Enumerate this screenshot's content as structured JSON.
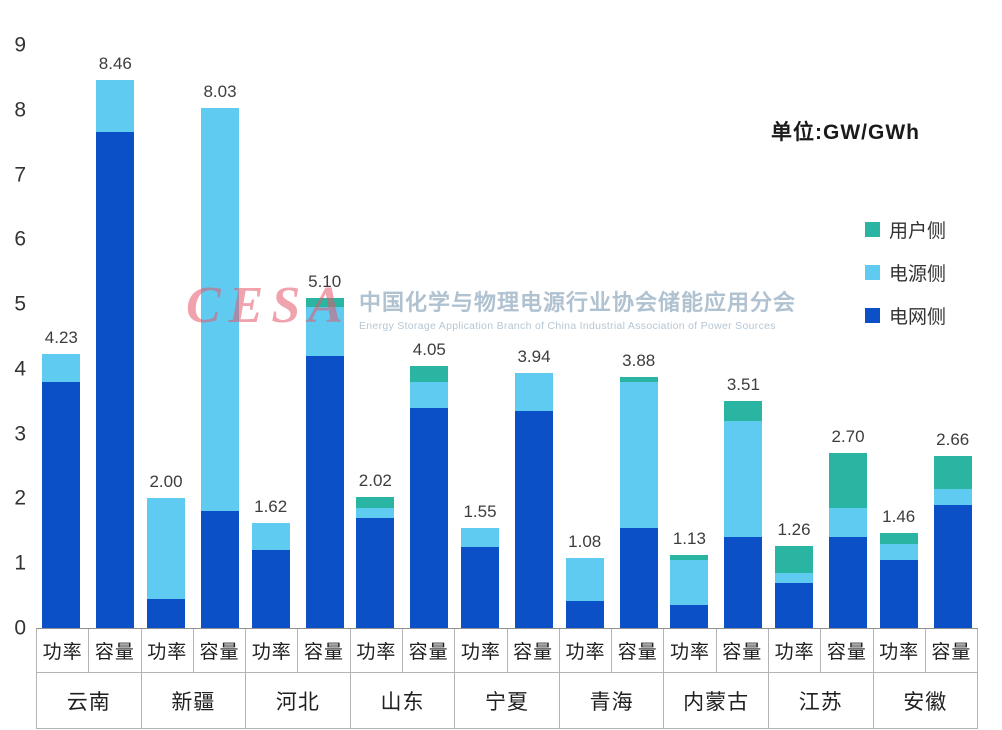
{
  "unit_label": "单位:GW/GWh",
  "watermark": {
    "logo": "CESA",
    "cn": "中国化学与物理电源行业协会储能应用分会",
    "en": "Energy Storage Application Branch of China Industrial Association of Power Sources"
  },
  "legend": [
    {
      "label": "用户侧",
      "color": "#2ab5a3"
    },
    {
      "label": "电源侧",
      "color": "#5fcbf1"
    },
    {
      "label": "电网侧",
      "color": "#0b50c6"
    }
  ],
  "chart_data": {
    "type": "bar",
    "stacked": true,
    "title": "",
    "ylabel": "",
    "xlabel": "",
    "ylim": [
      0,
      9
    ],
    "y_ticks": [
      0,
      1,
      2,
      3,
      4,
      5,
      6,
      7,
      8,
      9
    ],
    "grid": false,
    "legend_position": "right",
    "series_order": [
      "电网侧",
      "电源侧",
      "用户侧"
    ],
    "series_colors": [
      "#0b50c6",
      "#5fcbf1",
      "#2ab5a3"
    ],
    "bar_kinds": [
      "功率",
      "容量"
    ],
    "groups": [
      {
        "province": "云南",
        "bars": [
          {
            "label": "功率",
            "total": 4.23,
            "segments": [
              3.8,
              0.43,
              0.0
            ]
          },
          {
            "label": "容量",
            "total": 8.46,
            "segments": [
              7.65,
              0.81,
              0.0
            ]
          }
        ]
      },
      {
        "province": "新疆",
        "bars": [
          {
            "label": "功率",
            "total": 2.0,
            "segments": [
              0.45,
              1.55,
              0.0
            ]
          },
          {
            "label": "容量",
            "total": 8.03,
            "segments": [
              1.8,
              6.23,
              0.0
            ]
          }
        ]
      },
      {
        "province": "河北",
        "bars": [
          {
            "label": "功率",
            "total": 1.62,
            "segments": [
              1.2,
              0.42,
              0.0
            ]
          },
          {
            "label": "容量",
            "total": 5.1,
            "segments": [
              4.2,
              0.75,
              0.15
            ]
          }
        ]
      },
      {
        "province": "山东",
        "bars": [
          {
            "label": "功率",
            "total": 2.02,
            "segments": [
              1.7,
              0.15,
              0.17
            ]
          },
          {
            "label": "容量",
            "total": 4.05,
            "segments": [
              3.4,
              0.4,
              0.25
            ]
          }
        ]
      },
      {
        "province": "宁夏",
        "bars": [
          {
            "label": "功率",
            "total": 1.55,
            "segments": [
              1.25,
              0.3,
              0.0
            ]
          },
          {
            "label": "容量",
            "total": 3.94,
            "segments": [
              3.35,
              0.59,
              0.0
            ]
          }
        ]
      },
      {
        "province": "青海",
        "bars": [
          {
            "label": "功率",
            "total": 1.08,
            "segments": [
              0.42,
              0.66,
              0.0
            ]
          },
          {
            "label": "容量",
            "total": 3.88,
            "segments": [
              1.55,
              2.25,
              0.08
            ]
          }
        ]
      },
      {
        "province": "内蒙古",
        "bars": [
          {
            "label": "功率",
            "total": 1.13,
            "segments": [
              0.35,
              0.7,
              0.08
            ]
          },
          {
            "label": "容量",
            "total": 3.51,
            "segments": [
              1.4,
              1.8,
              0.31
            ]
          }
        ]
      },
      {
        "province": "江苏",
        "bars": [
          {
            "label": "功率",
            "total": 1.26,
            "segments": [
              0.7,
              0.15,
              0.41
            ]
          },
          {
            "label": "容量",
            "total": 2.7,
            "segments": [
              1.4,
              0.45,
              0.85
            ]
          }
        ]
      },
      {
        "province": "安徽",
        "bars": [
          {
            "label": "功率",
            "total": 1.46,
            "segments": [
              1.05,
              0.25,
              0.16
            ]
          },
          {
            "label": "容量",
            "total": 2.66,
            "segments": [
              1.9,
              0.25,
              0.51
            ]
          }
        ]
      }
    ]
  }
}
